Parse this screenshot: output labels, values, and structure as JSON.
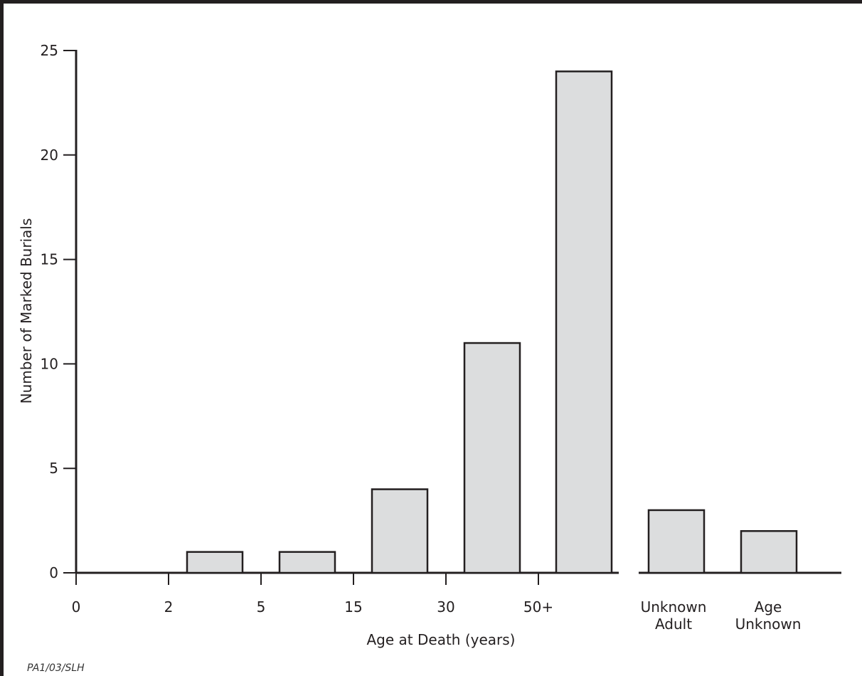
{
  "chart_data": {
    "type": "bar",
    "title": "",
    "xlabel": "Age at Death (years)",
    "ylabel": "Number of Marked Burials",
    "ylim": [
      0,
      25
    ],
    "yticks": [
      0,
      5,
      10,
      15,
      20,
      25
    ],
    "x_boundary_ticks": [
      "0",
      "2",
      "5",
      "15",
      "30",
      "50+"
    ],
    "categories": [
      "2–5",
      "5–15",
      "15–30",
      "30–50",
      "50+",
      "Unknown Adult",
      "Age Unknown"
    ],
    "values": [
      1,
      1,
      4,
      11,
      24,
      3,
      2
    ],
    "separate_group_labels": [
      {
        "line1": "Unknown",
        "line2": "Adult"
      },
      {
        "line1": "Age",
        "line2": "Unknown"
      }
    ],
    "bar_color": "#dcddde",
    "bar_stroke": "#231f20",
    "grid": false,
    "legend": "none"
  },
  "credit": "PA1/03/SLH"
}
